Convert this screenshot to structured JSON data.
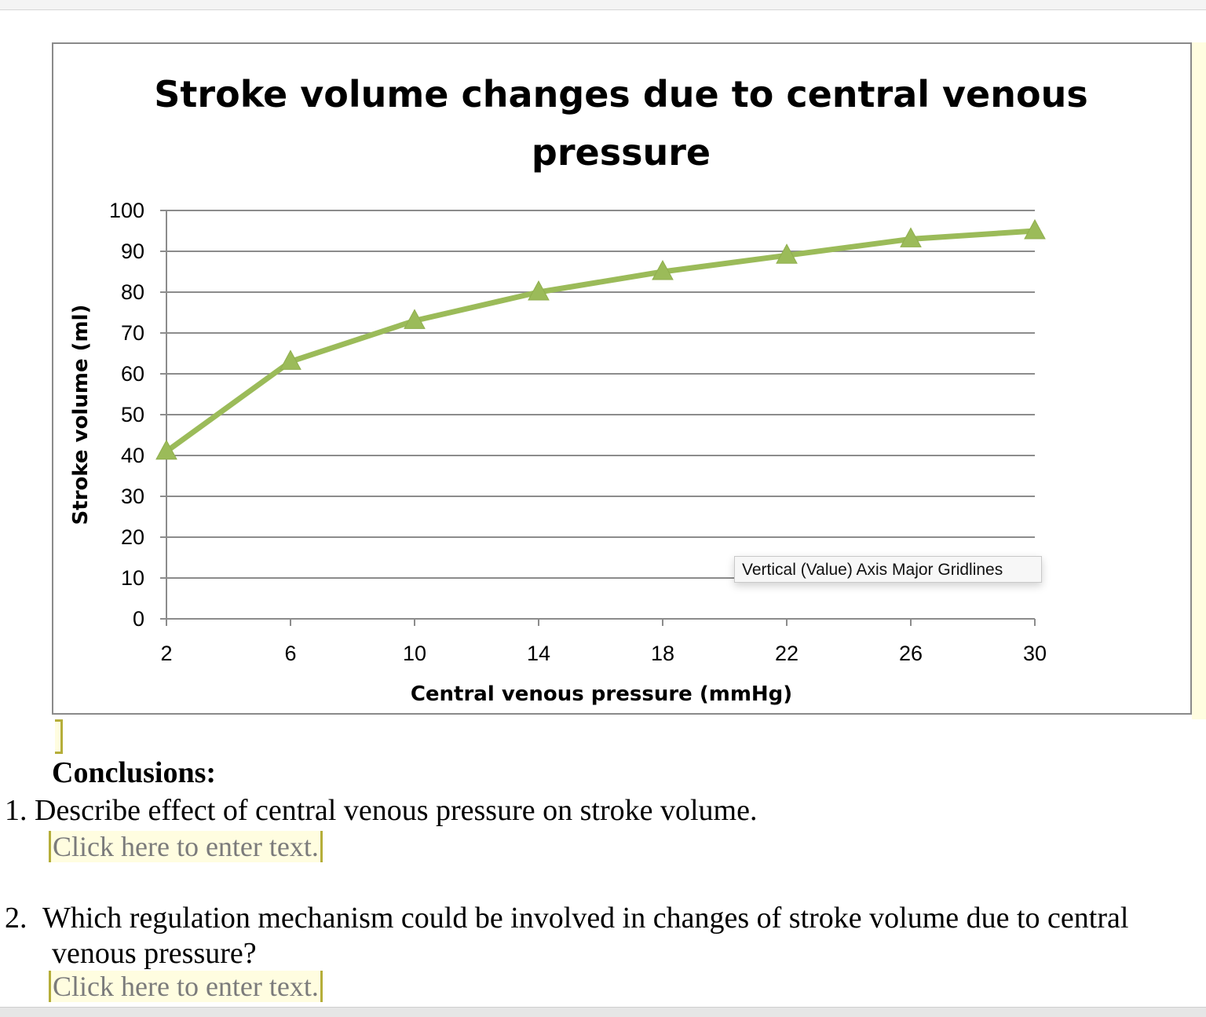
{
  "chart_data": {
    "type": "line",
    "title_line1": "Stroke volume changes due to central venous",
    "title_line2": "pressure",
    "xlabel": "Central venous pressure (mmHg)",
    "ylabel": "Stroke volume (ml)",
    "x": [
      2,
      6,
      10,
      14,
      18,
      22,
      26,
      30
    ],
    "x_tick_labels": [
      "2",
      "6",
      "10",
      "14",
      "18",
      "22",
      "26",
      "30"
    ],
    "y_tick_labels": [
      "0",
      "10",
      "20",
      "30",
      "40",
      "50",
      "60",
      "70",
      "80",
      "90",
      "100"
    ],
    "series": [
      {
        "values": [
          41,
          63,
          73,
          80,
          85,
          89,
          93,
          95
        ]
      }
    ],
    "ylim": [
      0,
      100
    ],
    "grid": true,
    "marker": "triangle",
    "color": "#9bbb59"
  },
  "tooltip": "Vertical (Value) Axis Major Gridlines",
  "document": {
    "heading": "Conclusions:",
    "q1": "1.  Describe effect of central venous pressure on stroke volume.",
    "q1_field": "Click here to enter text.",
    "q2_number": "2.",
    "q2_line1": "Which regulation mechanism could be involved in changes of stroke volume due to central",
    "q2_line2": "venous pressure?",
    "q2_field": "Click here to enter text."
  }
}
